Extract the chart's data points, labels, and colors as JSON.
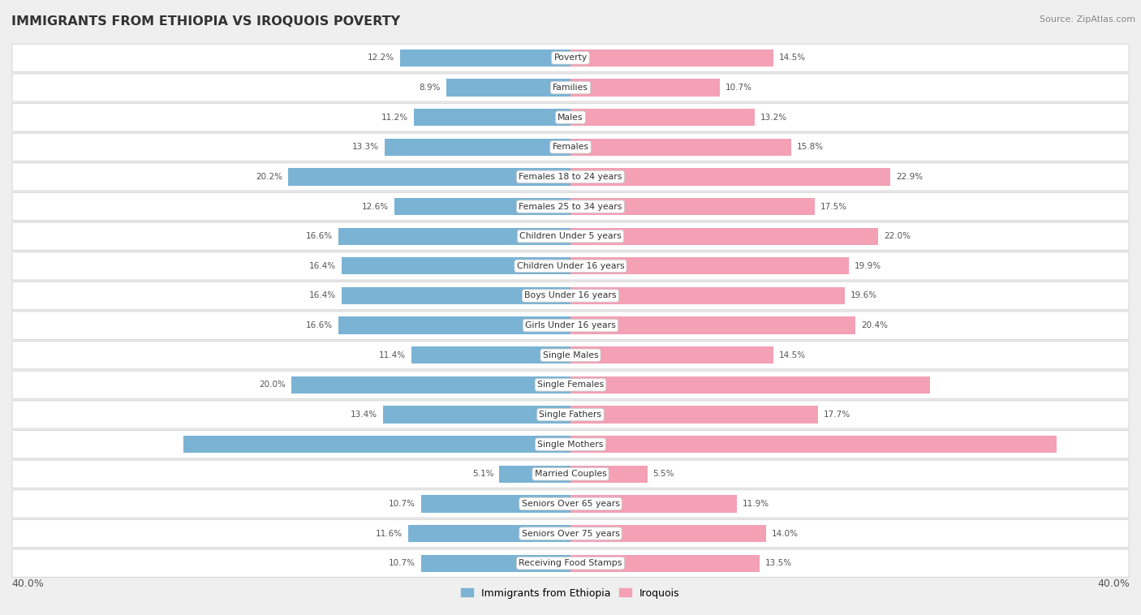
{
  "title": "IMMIGRANTS FROM ETHIOPIA VS IROQUOIS POVERTY",
  "source": "Source: ZipAtlas.com",
  "categories": [
    "Poverty",
    "Families",
    "Males",
    "Females",
    "Females 18 to 24 years",
    "Females 25 to 34 years",
    "Children Under 5 years",
    "Children Under 16 years",
    "Boys Under 16 years",
    "Girls Under 16 years",
    "Single Males",
    "Single Females",
    "Single Fathers",
    "Single Mothers",
    "Married Couples",
    "Seniors Over 65 years",
    "Seniors Over 75 years",
    "Receiving Food Stamps"
  ],
  "ethiopia_values": [
    12.2,
    8.9,
    11.2,
    13.3,
    20.2,
    12.6,
    16.6,
    16.4,
    16.4,
    16.6,
    11.4,
    20.0,
    13.4,
    27.7,
    5.1,
    10.7,
    11.6,
    10.7
  ],
  "iroquois_values": [
    14.5,
    10.7,
    13.2,
    15.8,
    22.9,
    17.5,
    22.0,
    19.9,
    19.6,
    20.4,
    14.5,
    25.7,
    17.7,
    34.8,
    5.5,
    11.9,
    14.0,
    13.5
  ],
  "ethiopia_color": "#7ab3d4",
  "iroquois_color": "#f4a0b5",
  "background_color": "#efefef",
  "row_bg_color": "#ffffff",
  "axis_limit": 40.0,
  "bar_height": 0.58,
  "legend_ethiopia": "Immigrants from Ethiopia",
  "legend_iroquois": "Iroquois",
  "white_label_ethiopia": [
    "Single Mothers"
  ],
  "white_label_iroquois": [
    "Single Mothers",
    "Single Females"
  ]
}
